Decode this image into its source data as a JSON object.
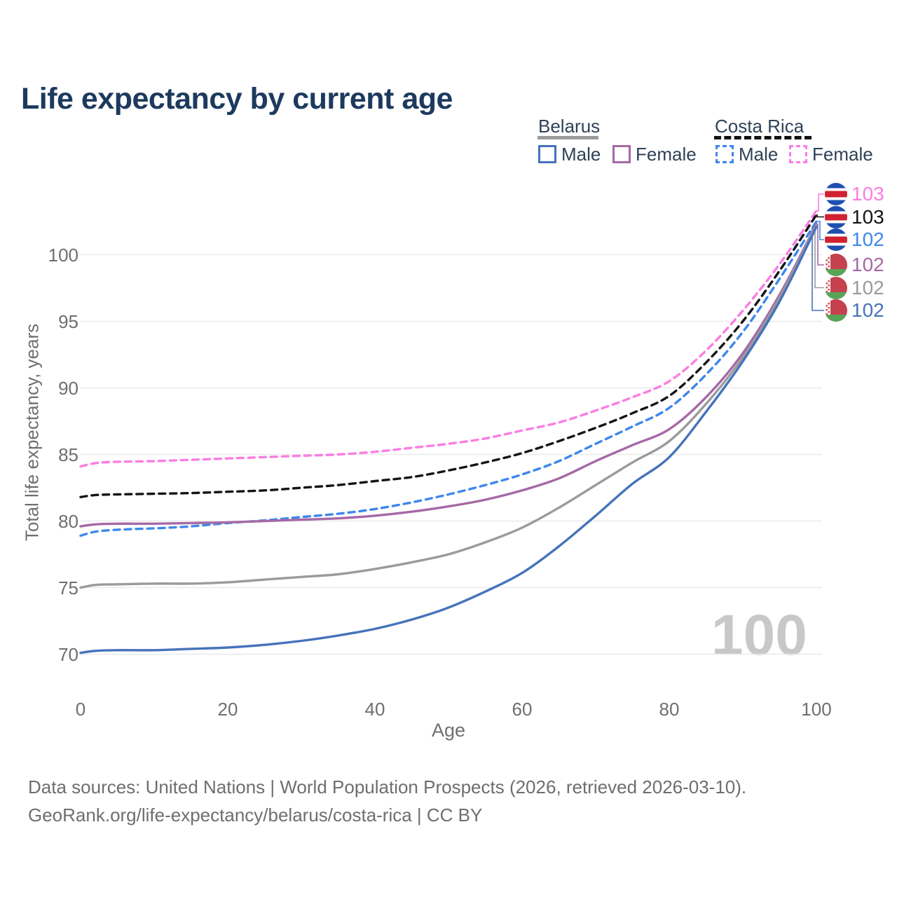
{
  "header": {
    "title": "Life expectancy by current age"
  },
  "legend": {
    "belarus": {
      "label": "Belarus",
      "male_label": "Male",
      "female_label": "Female"
    },
    "costa_rica": {
      "label": "Costa Rica",
      "male_label": "Male",
      "female_label": "Female"
    }
  },
  "axes": {
    "x_label": "Age",
    "y_label": "Total life expectancy, years"
  },
  "watermark": "100",
  "flags": {
    "costa_rica": {
      "blue": "#1f4fb0",
      "red": "#d0222f",
      "white": "#ffffff"
    },
    "belarus": {
      "red": "#c6414e",
      "green": "#57a457",
      "white": "#ffffff"
    }
  },
  "chart_data": {
    "type": "line",
    "title": "Life expectancy by current age",
    "xlabel": "Age",
    "ylabel": "Total life expectancy, years",
    "xlim": [
      0,
      100
    ],
    "ylim": [
      68,
      104
    ],
    "x_ticks": [
      0,
      20,
      40,
      60,
      80,
      100
    ],
    "y_ticks": [
      70,
      75,
      80,
      85,
      90,
      95,
      100
    ],
    "grid": "horizontal-only",
    "legend_position": "top-right",
    "x": [
      0,
      2,
      5,
      10,
      15,
      20,
      25,
      30,
      35,
      40,
      45,
      50,
      55,
      60,
      65,
      70,
      75,
      80,
      85,
      90,
      95,
      100
    ],
    "series": [
      {
        "name": "Costa Rica Female",
        "country": "Costa Rica",
        "sex": "Female",
        "flag": "costa_rica",
        "style": "dashed",
        "color": "#fa7de2",
        "label_color": "#fa7de2",
        "end_label": "103",
        "values": [
          84.1,
          84.35,
          84.45,
          84.5,
          84.6,
          84.7,
          84.8,
          84.9,
          85.0,
          85.2,
          85.5,
          85.8,
          86.2,
          86.8,
          87.4,
          88.3,
          89.3,
          90.5,
          92.8,
          95.8,
          99.3,
          103.3
        ]
      },
      {
        "name": "Costa Rica Total",
        "country": "Costa Rica",
        "sex": "Both",
        "flag": "costa_rica",
        "style": "dashed",
        "color": "#141414",
        "label_color": "#141414",
        "end_label": "103",
        "values": [
          81.8,
          81.95,
          82.0,
          82.05,
          82.1,
          82.2,
          82.3,
          82.5,
          82.7,
          83.0,
          83.3,
          83.8,
          84.4,
          85.1,
          86.0,
          87.0,
          88.1,
          89.4,
          91.9,
          95.0,
          98.8,
          103.0
        ]
      },
      {
        "name": "Costa Rica Male",
        "country": "Costa Rica",
        "sex": "Male",
        "flag": "costa_rica",
        "style": "dashed",
        "color": "#3e87ec",
        "label_color": "#3e87ec",
        "end_label": "102",
        "values": [
          78.9,
          79.2,
          79.35,
          79.45,
          79.6,
          79.85,
          80.05,
          80.3,
          80.55,
          80.9,
          81.4,
          82.0,
          82.7,
          83.5,
          84.5,
          85.8,
          87.1,
          88.5,
          91.0,
          94.2,
          98.2,
          102.5
        ]
      },
      {
        "name": "Belarus Female",
        "country": "Belarus",
        "sex": "Female",
        "flag": "belarus",
        "style": "solid",
        "color": "#a669a6",
        "label_color": "#a669a6",
        "end_label": "102",
        "values": [
          79.6,
          79.75,
          79.8,
          79.8,
          79.85,
          79.9,
          80.0,
          80.1,
          80.2,
          80.4,
          80.7,
          81.1,
          81.6,
          82.3,
          83.2,
          84.5,
          85.7,
          86.9,
          89.3,
          92.6,
          97.0,
          102.3
        ]
      },
      {
        "name": "Belarus Total",
        "country": "Belarus",
        "sex": "Both",
        "flag": "belarus",
        "style": "solid",
        "color": "#9b9b9b",
        "label_color": "#9b9b9b",
        "end_label": "102",
        "values": [
          75.0,
          75.2,
          75.25,
          75.3,
          75.3,
          75.4,
          75.6,
          75.8,
          76.0,
          76.4,
          76.9,
          77.5,
          78.4,
          79.5,
          81.0,
          82.7,
          84.4,
          86.0,
          88.8,
          92.3,
          96.8,
          102.2
        ]
      },
      {
        "name": "Belarus Male",
        "country": "Belarus",
        "sex": "Male",
        "flag": "belarus",
        "style": "solid",
        "color": "#4673bb",
        "label_color": "#4673bb",
        "end_label": "102",
        "values": [
          70.1,
          70.25,
          70.3,
          70.3,
          70.4,
          70.5,
          70.7,
          71.0,
          71.4,
          71.9,
          72.6,
          73.5,
          74.7,
          76.1,
          78.1,
          80.4,
          82.8,
          84.8,
          88.2,
          92.0,
          96.5,
          102.1
        ]
      }
    ]
  },
  "footer": {
    "line1": "Data sources: United Nations | World Population Prospects (2026, retrieved 2026-03-10).",
    "line2": "GeoRank.org/life-expectancy/belarus/costa-rica | CC BY"
  }
}
